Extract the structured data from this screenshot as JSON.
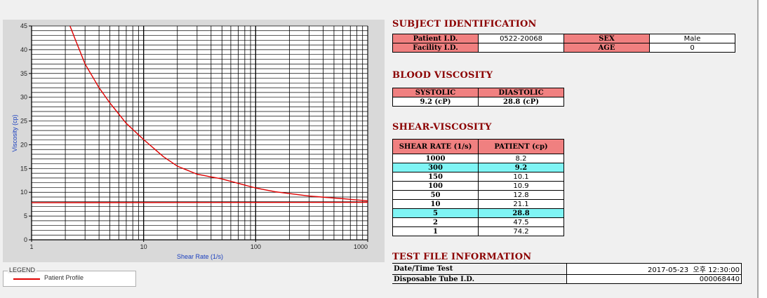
{
  "chart": {
    "title": "",
    "xlabel": "Shear Rate (1/s)",
    "ylabel": "Viscosity (cp)",
    "x_ticks": [
      "1",
      "10",
      "100",
      "1000"
    ],
    "y_ticks": [
      "0",
      "5",
      "10",
      "15",
      "20",
      "25",
      "30",
      "35",
      "40",
      "45"
    ]
  },
  "chart_data": {
    "type": "line",
    "x_scale": "log",
    "xlim": [
      1,
      1000
    ],
    "ylim": [
      0,
      45
    ],
    "xlabel": "Shear Rate (1/s)",
    "ylabel": "Viscosity (cp)",
    "grid": true,
    "series": [
      {
        "name": "Patient Profile",
        "color": "#e00000",
        "x": [
          2.2,
          3,
          4,
          5,
          7,
          10,
          15,
          20,
          30,
          50,
          100,
          150,
          300,
          500,
          1000
        ],
        "y": [
          45,
          37,
          32,
          28.8,
          24.5,
          21.1,
          17.5,
          15.5,
          13.8,
          12.8,
          10.9,
          10.1,
          9.2,
          8.8,
          8.2
        ]
      },
      {
        "name": "",
        "color": "#e00000",
        "x": [
          1,
          1000
        ],
        "y": [
          7.8,
          7.9
        ]
      }
    ],
    "legend": {
      "position": "bottom-left",
      "entries": [
        "Patient Profile"
      ]
    }
  },
  "legend": {
    "title": "LEGEND",
    "entry": "Patient Profile"
  },
  "subject": {
    "title": "SUBJECT IDENTIFICATION",
    "patient_id_label": "Patient I.D.",
    "patient_id": "0522-20068",
    "sex_label": "SEX",
    "sex": "Male",
    "facility_label": "Facility I.D.",
    "facility_id": "",
    "age_label": "AGE",
    "age": "0"
  },
  "blood": {
    "title": "BLOOD VISCOSITY",
    "systolic_label": "SYSTOLIC",
    "diastolic_label": "DIASTOLIC",
    "systolic": "9.2 (cP)",
    "diastolic": "28.8 (cP)"
  },
  "shear": {
    "title": "SHEAR-VISCOSITY",
    "rate_header": "SHEAR RATE (1/s)",
    "patient_header": "PATIENT (cp)",
    "rows": [
      {
        "rate": "1000",
        "value": "8.2",
        "highlight": false
      },
      {
        "rate": "300",
        "value": "9.2",
        "highlight": true
      },
      {
        "rate": "150",
        "value": "10.1",
        "highlight": false
      },
      {
        "rate": "100",
        "value": "10.9",
        "highlight": false
      },
      {
        "rate": "50",
        "value": "12.8",
        "highlight": false
      },
      {
        "rate": "10",
        "value": "21.1",
        "highlight": false
      },
      {
        "rate": "5",
        "value": "28.8",
        "highlight": true
      },
      {
        "rate": "2",
        "value": "47.5",
        "highlight": false
      },
      {
        "rate": "1",
        "value": "74.2",
        "highlight": false
      }
    ]
  },
  "testfile": {
    "title": "TEST FILE INFORMATION",
    "datetime_label": "Date/Time Test",
    "datetime": "2017-05-23  오후 12:30:00",
    "tube_label": "Disposable Tube I.D.",
    "tube_id": "000068440"
  }
}
